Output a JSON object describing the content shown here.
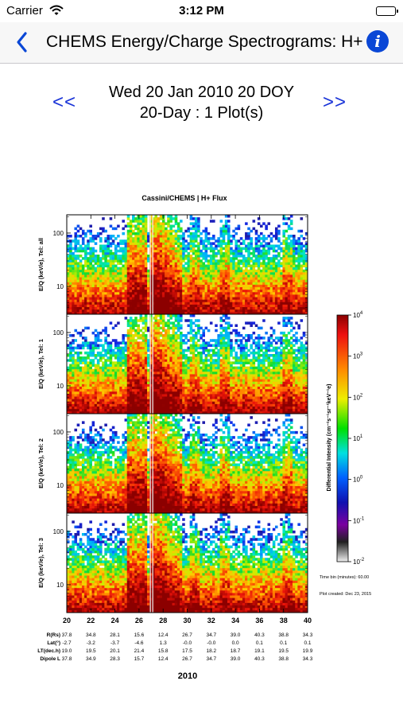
{
  "status": {
    "carrier": "Carrier",
    "time": "3:12 PM"
  },
  "nav": {
    "title": "CHEMS Energy/Charge Spectrograms: H+",
    "back_icon": "chevron-left-icon",
    "info_icon": "info-icon",
    "accent": "#0a47d6"
  },
  "header": {
    "date_line": "Wed 20 Jan 2010 20 DOY",
    "range_line": "20-Day : 1 Plot(s)",
    "prev_label": "<<",
    "next_label": ">>",
    "arrow_color": "#1a34d8"
  },
  "chart_data": {
    "type": "heatmap",
    "title": "Cassini/CHEMS | H+ Flux",
    "panels": [
      {
        "ylabel": "E/Q (keV/e), Tel: all"
      },
      {
        "ylabel": "E/Q (keV/e), Tel: 1"
      },
      {
        "ylabel": "E/Q (keV/e), Tel: 2"
      },
      {
        "ylabel": "E/Q (keV/e), Tel: 3"
      }
    ],
    "yticks": [
      "100",
      "10"
    ],
    "xticks": [
      "20",
      "22",
      "24",
      "26",
      "28",
      "30",
      "32",
      "34",
      "36",
      "38",
      "40"
    ],
    "xlim": [
      20,
      40
    ],
    "ylim_keV": [
      3,
      220
    ],
    "ylog": true,
    "xlabel": "2010",
    "colorbar": {
      "label": "Differential Intensity (cm⁻²s⁻¹sr⁻¹keV⁻¹e)",
      "ticks": [
        {
          "base": "10",
          "exp": "4"
        },
        {
          "base": "10",
          "exp": "3"
        },
        {
          "base": "10",
          "exp": "2"
        },
        {
          "base": "10",
          "exp": "1"
        },
        {
          "base": "10",
          "exp": "0"
        },
        {
          "base": "10",
          "exp": "-1"
        },
        {
          "base": "10",
          "exp": "-2"
        }
      ]
    },
    "notes": {
      "time_bin": "Time bin (minutes): 60.00",
      "created": "Plot created: Dec 23, 2015"
    },
    "ephemeris": {
      "labels": [
        "R(Rs)",
        "Lat(°)",
        "LT(dec.h)",
        "Dipole L"
      ],
      "rows": [
        [
          "37.8",
          "34.8",
          "28.1",
          "15.6",
          "12.4",
          "26.7",
          "34.7",
          "39.0",
          "40.3",
          "38.8",
          "34.3"
        ],
        [
          "-2.7",
          "-3.2",
          "-3.7",
          "-4.6",
          "1.3",
          "-0.0",
          "-0.0",
          "0.0",
          "0.1",
          "0.1",
          "0.1"
        ],
        [
          "19.0",
          "19.5",
          "20.1",
          "21.4",
          "15.8",
          "17.5",
          "18.2",
          "18.7",
          "19.1",
          "19.5",
          "19.9"
        ],
        [
          "37.8",
          "34.9",
          "28.3",
          "15.7",
          "12.4",
          "26.7",
          "34.7",
          "39.0",
          "40.3",
          "38.8",
          "34.3"
        ]
      ]
    }
  }
}
